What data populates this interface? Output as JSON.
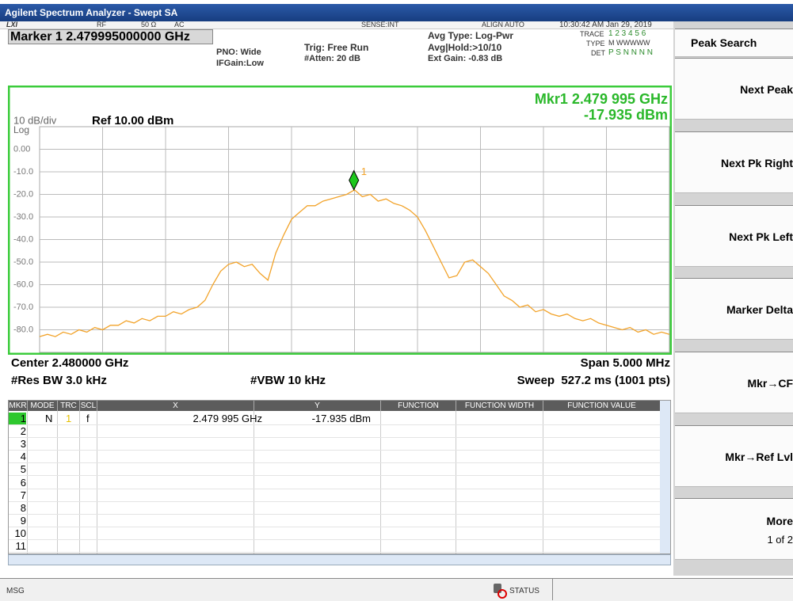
{
  "window": {
    "title": "Agilent Spectrum Analyzer - Swept SA"
  },
  "status": {
    "lxi": "LXI",
    "rf": "RF",
    "impedance": "50 Ω",
    "coupling": "AC",
    "sense": "SENSE:INT",
    "align": "ALIGN AUTO",
    "datetime": "10:30:42 AM Jan 29, 2019"
  },
  "settings": {
    "marker": "Marker 1 2.479995000000 GHz",
    "pno": "PNO: Wide",
    "ifgain": "IFGain:Low",
    "trig": "Trig: Free Run",
    "atten": "#Atten: 20 dB",
    "avg_type": "Avg Type: Log-Pwr",
    "avg_hold": "Avg|Hold:>10/10",
    "ext_gain": "Ext Gain: -0.83 dB",
    "trace_label": "TRACE",
    "trace_nums": "1 2 3 4 5 6",
    "type_label": "TYPE",
    "type_val": "M WWWWW",
    "det_label": "DET",
    "det_val": "P S N N N N"
  },
  "chart_data": {
    "type": "line",
    "scale": "10 dB/div",
    "ref": "Ref 10.00 dBm",
    "log": "Log",
    "marker_readout": [
      "Mkr1 2.479 995 GHz",
      "-17.935 dBm"
    ],
    "marker": {
      "label": "1",
      "x": 2.479995,
      "value": -17.935
    },
    "xlim": [
      2.4775,
      2.4825
    ],
    "ylim": [
      -90,
      10
    ],
    "yticks": [
      {
        "value": 0,
        "label": "0.00"
      },
      {
        "value": -10,
        "label": "-10.0"
      },
      {
        "value": -20,
        "label": "-20.0"
      },
      {
        "value": -30,
        "label": "-30.0"
      },
      {
        "value": -40,
        "label": "-40.0"
      },
      {
        "value": -50,
        "label": "-50.0"
      },
      {
        "value": -60,
        "label": "-60.0"
      },
      {
        "value": -70,
        "label": "-70.0"
      },
      {
        "value": -80,
        "label": "-80.0"
      }
    ],
    "grid": true,
    "color": "#f2a32a",
    "values": [
      -83,
      -82,
      -83,
      -81,
      -82,
      -80,
      -81,
      -79,
      -80,
      -78,
      -78,
      -76,
      -77,
      -75,
      -76,
      -74,
      -74,
      -72,
      -73,
      -71,
      -70,
      -67,
      -60,
      -54,
      -51,
      -50,
      -52,
      -51,
      -55,
      -58,
      -46,
      -38,
      -31,
      -28,
      -25,
      -25,
      -23,
      -22,
      -21,
      -20,
      -18,
      -21,
      -20,
      -23,
      -22,
      -24,
      -25,
      -27,
      -30,
      -36,
      -43,
      -50,
      -57,
      -56,
      -50,
      -49,
      -52,
      -55,
      -60,
      -65,
      -67,
      -70,
      -69,
      -72,
      -71,
      -73,
      -74,
      -73,
      -75,
      -76,
      -75,
      -77,
      -78,
      -79,
      -80,
      -79,
      -81,
      -80,
      -82,
      -81,
      -82
    ],
    "center": "Center 2.480000 GHz",
    "span": "Span 5.000 MHz",
    "rbw": "#Res BW 3.0 kHz",
    "vbw": "#VBW 10 kHz",
    "sweep": "Sweep  527.2 ms (1001 pts)"
  },
  "softkeys": {
    "header": "Peak Search",
    "keys": [
      "Next Peak",
      "Next Pk Right",
      "Next Pk Left",
      "Marker Delta",
      "Mkr→CF",
      "Mkr→Ref Lvl"
    ],
    "more": "More",
    "page": "1 of 2"
  },
  "table": {
    "headers": [
      "MKR",
      "MODE",
      "TRC",
      "SCL",
      "X",
      "Y",
      "FUNCTION",
      "FUNCTION WIDTH",
      "FUNCTION VALUE"
    ],
    "rows": [
      [
        "1",
        "N",
        "1",
        "f",
        "2.479 995 GHz",
        "-17.935 dBm"
      ],
      [
        "2"
      ],
      [
        "3"
      ],
      [
        "4"
      ],
      [
        "5"
      ],
      [
        "6"
      ],
      [
        "7"
      ],
      [
        "8"
      ],
      [
        "9"
      ],
      [
        "10"
      ],
      [
        "11"
      ]
    ]
  },
  "footer": {
    "msg": "MSG",
    "status": "STATUS"
  }
}
